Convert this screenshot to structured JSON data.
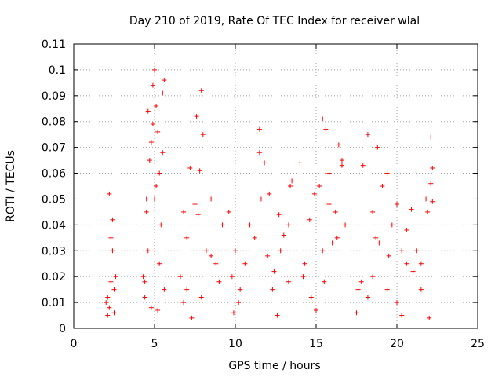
{
  "chart_data": {
    "type": "scatter",
    "title": "Day 210 of 2019, Rate Of TEC Index for receiver wlal",
    "xlabel": "GPS time / hours",
    "ylabel": "ROTI / TECUs",
    "xlim": [
      0,
      25
    ],
    "ylim": [
      0,
      0.11
    ],
    "xticks": [
      0,
      5,
      10,
      15,
      20,
      25
    ],
    "xtick_labels": [
      "0",
      "5",
      "10",
      "15",
      "20",
      "25"
    ],
    "yticks": [
      0,
      0.01,
      0.02,
      0.03,
      0.04,
      0.05,
      0.06,
      0.07,
      0.08,
      0.09,
      0.1,
      0.11
    ],
    "ytick_labels": [
      "0",
      "0.01",
      "0.02",
      "0.03",
      "0.04",
      "0.05",
      "0.06",
      "0.07",
      "0.08",
      "0.09",
      "0.1",
      "0.11"
    ],
    "grid": true,
    "marker": "+",
    "color": "#ff0000",
    "series": [
      {
        "name": "ROTI",
        "x": [
          2.0,
          2.1,
          2.2,
          2.3,
          2.4,
          2.5,
          2.6,
          2.3,
          2.4,
          2.2,
          4.3,
          4.4,
          4.5,
          4.6,
          4.7,
          4.8,
          4.9,
          5.0,
          5.1,
          5.2,
          5.3,
          5.4,
          5.5,
          5.6,
          4.5,
          4.6,
          5.0,
          4.9,
          5.1,
          5.5,
          4.4,
          4.8,
          5.3,
          5.6,
          6.6,
          6.8,
          7.0,
          7.2,
          7.5,
          7.7,
          7.9,
          8.0,
          8.2,
          8.5,
          8.8,
          9.0,
          9.2,
          7.8,
          7.6,
          7.0,
          6.8,
          8.5,
          7.9,
          9.6,
          9.8,
          10.0,
          10.3,
          10.6,
          10.9,
          11.2,
          11.5,
          11.8,
          12.1,
          12.4,
          12.7,
          13.0,
          13.3,
          13.5,
          11.6,
          11.5,
          12.0,
          12.3,
          13.3,
          13.4,
          10.2,
          12.8,
          14.0,
          14.3,
          14.6,
          14.9,
          15.2,
          15.4,
          15.6,
          15.8,
          16.0,
          16.2,
          16.4,
          16.6,
          16.8,
          15.4,
          15.5,
          15.8,
          16.6,
          14.7,
          14.2,
          16.3,
          17.6,
          17.9,
          18.2,
          18.5,
          18.8,
          19.1,
          19.4,
          19.7,
          20.0,
          20.3,
          20.6,
          20.9,
          21.2,
          21.5,
          21.8,
          22.1,
          22.2,
          18.2,
          18.5,
          18.7,
          19.4,
          19.5,
          20.0,
          21.9,
          22.1,
          22.2,
          20.6,
          17.8,
          18.9,
          21.0,
          21.5,
          2.1,
          2.5,
          5.2,
          7.3,
          9.9,
          12.6,
          15.0,
          17.5,
          20.3,
          22.0
        ],
        "y": [
          0.01,
          0.012,
          0.008,
          0.018,
          0.03,
          0.015,
          0.02,
          0.035,
          0.042,
          0.052,
          0.02,
          0.018,
          0.05,
          0.084,
          0.065,
          0.072,
          0.094,
          0.1,
          0.086,
          0.076,
          0.06,
          0.04,
          0.091,
          0.096,
          0.045,
          0.03,
          0.05,
          0.079,
          0.055,
          0.068,
          0.012,
          0.008,
          0.025,
          0.015,
          0.02,
          0.01,
          0.035,
          0.062,
          0.048,
          0.044,
          0.092,
          0.075,
          0.03,
          0.05,
          0.025,
          0.018,
          0.04,
          0.061,
          0.082,
          0.015,
          0.045,
          0.028,
          0.012,
          0.045,
          0.02,
          0.03,
          0.015,
          0.025,
          0.04,
          0.035,
          0.077,
          0.064,
          0.052,
          0.022,
          0.044,
          0.036,
          0.018,
          0.057,
          0.05,
          0.068,
          0.028,
          0.015,
          0.04,
          0.055,
          0.01,
          0.03,
          0.064,
          0.025,
          0.042,
          0.052,
          0.055,
          0.081,
          0.077,
          0.06,
          0.033,
          0.045,
          0.071,
          0.063,
          0.04,
          0.03,
          0.018,
          0.048,
          0.065,
          0.012,
          0.02,
          0.035,
          0.015,
          0.063,
          0.075,
          0.045,
          0.07,
          0.055,
          0.06,
          0.04,
          0.048,
          0.03,
          0.038,
          0.046,
          0.03,
          0.025,
          0.05,
          0.074,
          0.062,
          0.012,
          0.02,
          0.035,
          0.015,
          0.028,
          0.01,
          0.045,
          0.056,
          0.049,
          0.025,
          0.018,
          0.033,
          0.022,
          0.015,
          0.005,
          0.006,
          0.007,
          0.004,
          0.006,
          0.005,
          0.007,
          0.006,
          0.005,
          0.004
        ]
      }
    ]
  }
}
